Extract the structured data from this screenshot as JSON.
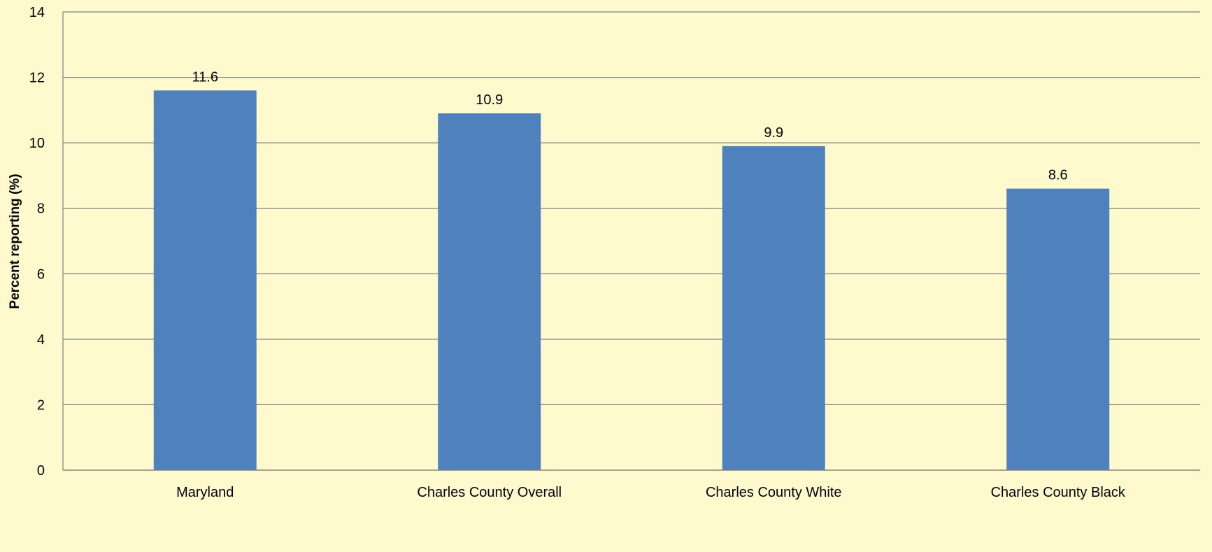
{
  "chart_data": {
    "type": "bar",
    "categories": [
      "Maryland",
      "Charles County Overall",
      "Charles County White",
      "Charles County Black"
    ],
    "values": [
      11.6,
      10.9,
      9.9,
      8.6
    ],
    "data_labels": [
      "11.6",
      "10.9",
      "9.9",
      "8.6"
    ],
    "title": "",
    "xlabel": "",
    "ylabel": "Percent reporting (%)",
    "ylim": [
      0,
      14
    ],
    "yticks": [
      0,
      2,
      4,
      6,
      8,
      10,
      12,
      14
    ],
    "ytick_labels": [
      "0",
      "2",
      "4",
      "6",
      "8",
      "10",
      "12",
      "14"
    ],
    "grid": true,
    "legend": "none",
    "colors": {
      "background": "#FFFACD",
      "bar": "#4F81BD",
      "gridline": "#7F7F7F",
      "text": "#000000"
    }
  }
}
